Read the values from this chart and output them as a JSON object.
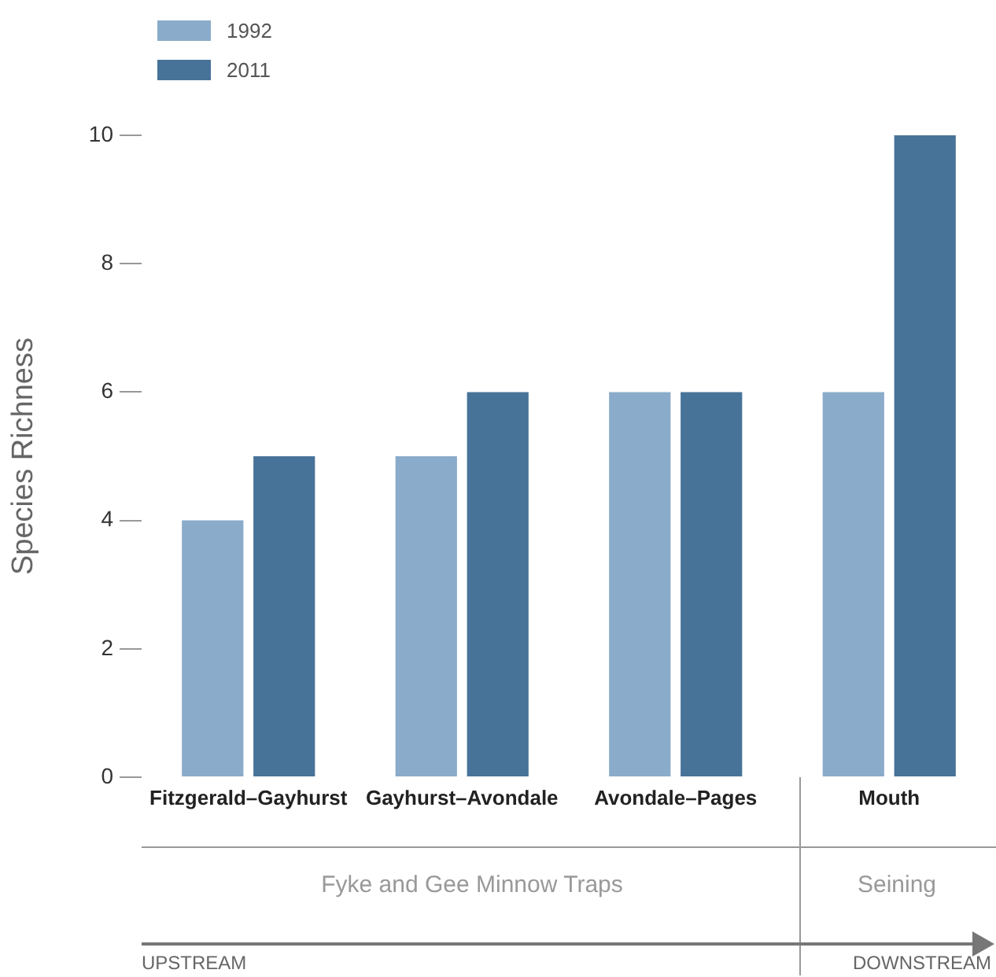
{
  "chart_data": {
    "type": "bar",
    "ylabel": "Species Richness",
    "categories": [
      "Fitzgerald–Gayhurst",
      "Gayhurst–Avondale",
      "Avondale–Pages",
      "Mouth"
    ],
    "series": [
      {
        "name": "1992",
        "color": "#8aabca",
        "values": [
          4,
          5,
          6,
          6
        ]
      },
      {
        "name": "2011",
        "color": "#477399",
        "values": [
          5,
          6,
          6,
          10
        ]
      }
    ],
    "ylim": [
      0,
      10
    ],
    "yticks": [
      0,
      2,
      4,
      6,
      8,
      10
    ],
    "grid": false,
    "legend": "top left",
    "annotations": [
      "Fyke and Gee Minnow Traps",
      "Seining",
      "UPSTREAM",
      "DOWNSTREAM"
    ]
  }
}
